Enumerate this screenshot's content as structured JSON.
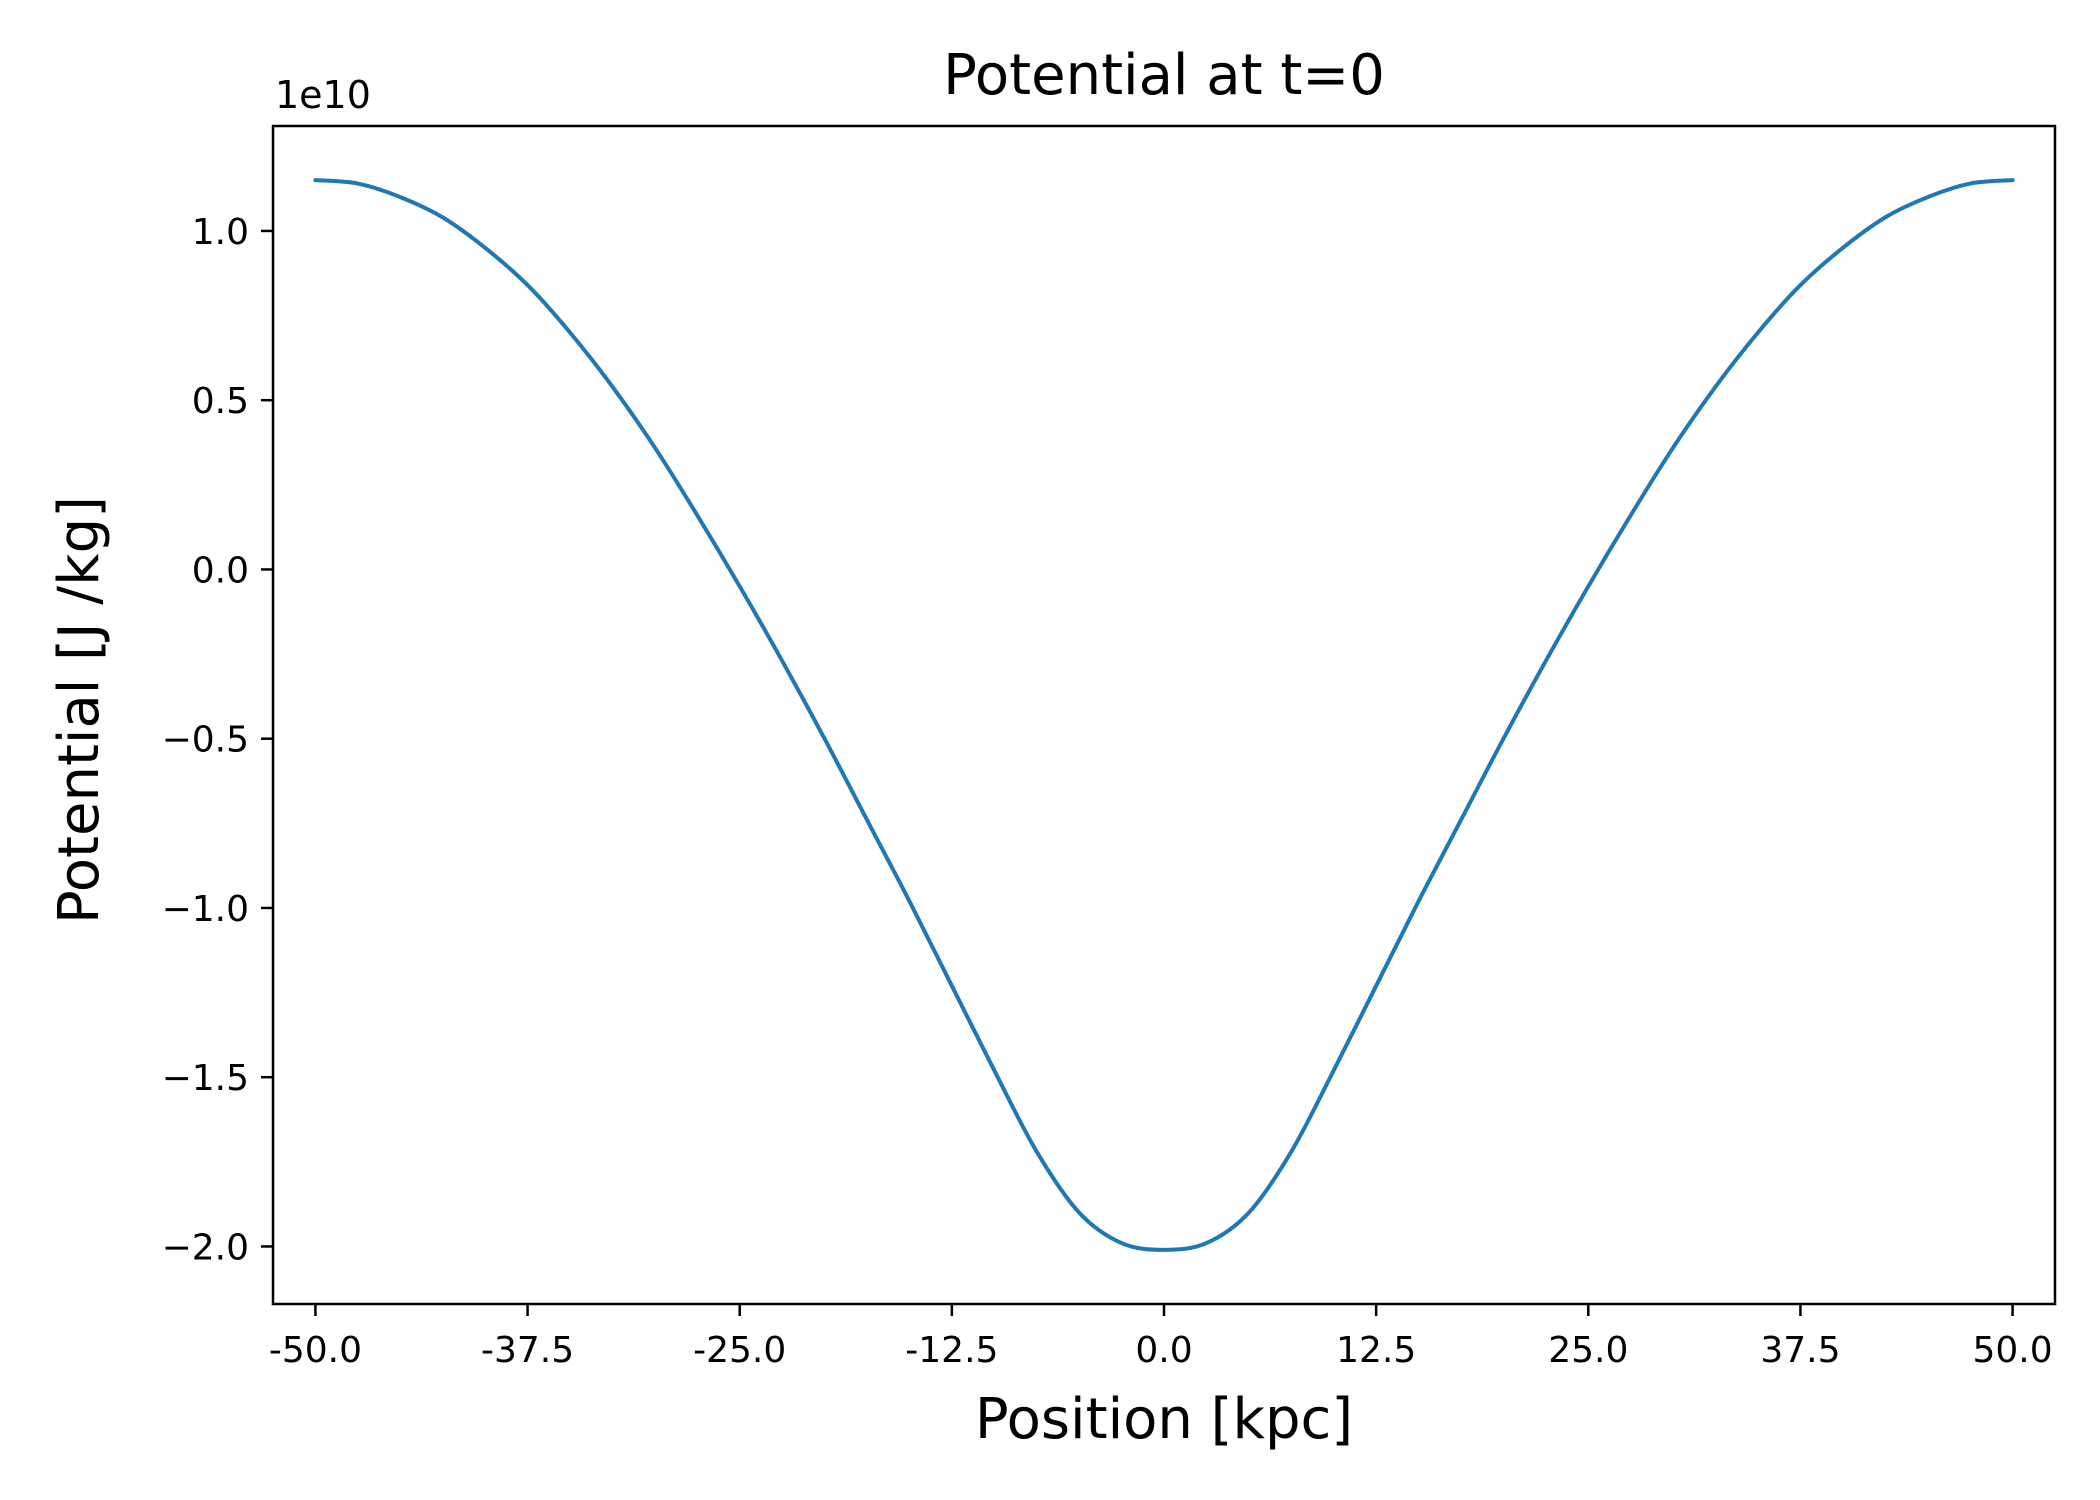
{
  "chart_data": {
    "type": "line",
    "title": "Potential at t=0",
    "xlabel": "Position [kpc]",
    "ylabel": "Potential [J /kg]",
    "y_offset_label": "1e10",
    "xlim": [
      -52.5,
      52.5
    ],
    "ylim": [
      -2.17,
      1.31
    ],
    "x_ticks": [
      -50.0,
      -37.5,
      -25.0,
      -12.5,
      0.0,
      12.5,
      25.0,
      37.5,
      50.0
    ],
    "x_tick_labels": [
      "-50.0",
      "-37.5",
      "-25.0",
      "-12.5",
      "0.0",
      "12.5",
      "25.0",
      "37.5",
      "50.0"
    ],
    "y_ticks": [
      1.0,
      0.5,
      0.0,
      -0.5,
      -1.0,
      -1.5,
      -2.0
    ],
    "y_tick_labels": [
      "1.0",
      "0.5",
      "0.0",
      "−0.5",
      "−1.0",
      "−1.5",
      "−2.0"
    ],
    "grid": false,
    "line_color": "#1f77b4",
    "series": [
      {
        "x": [
          -50,
          -47.5,
          -45,
          -42.5,
          -40,
          -37.5,
          -35,
          -32.5,
          -30,
          -27.5,
          -25,
          -22.5,
          -20,
          -17.5,
          -15,
          -12.5,
          -10,
          -7.5,
          -5,
          -2.5,
          0,
          2.5,
          5,
          7.5,
          10,
          12.5,
          15,
          17.5,
          20,
          22.5,
          25,
          27.5,
          30,
          32.5,
          35,
          37.5,
          40,
          42.5,
          45,
          47.5,
          50
        ],
        "y": [
          1.15,
          1.14,
          1.1,
          1.04,
          0.95,
          0.84,
          0.7,
          0.54,
          0.36,
          0.16,
          -0.05,
          -0.27,
          -0.5,
          -0.74,
          -0.98,
          -1.23,
          -1.48,
          -1.72,
          -1.9,
          -1.99,
          -2.01,
          -1.99,
          -1.9,
          -1.72,
          -1.48,
          -1.23,
          -0.98,
          -0.74,
          -0.5,
          -0.27,
          -0.05,
          0.16,
          0.36,
          0.54,
          0.7,
          0.84,
          0.95,
          1.04,
          1.1,
          1.14,
          1.15
        ]
      }
    ]
  }
}
